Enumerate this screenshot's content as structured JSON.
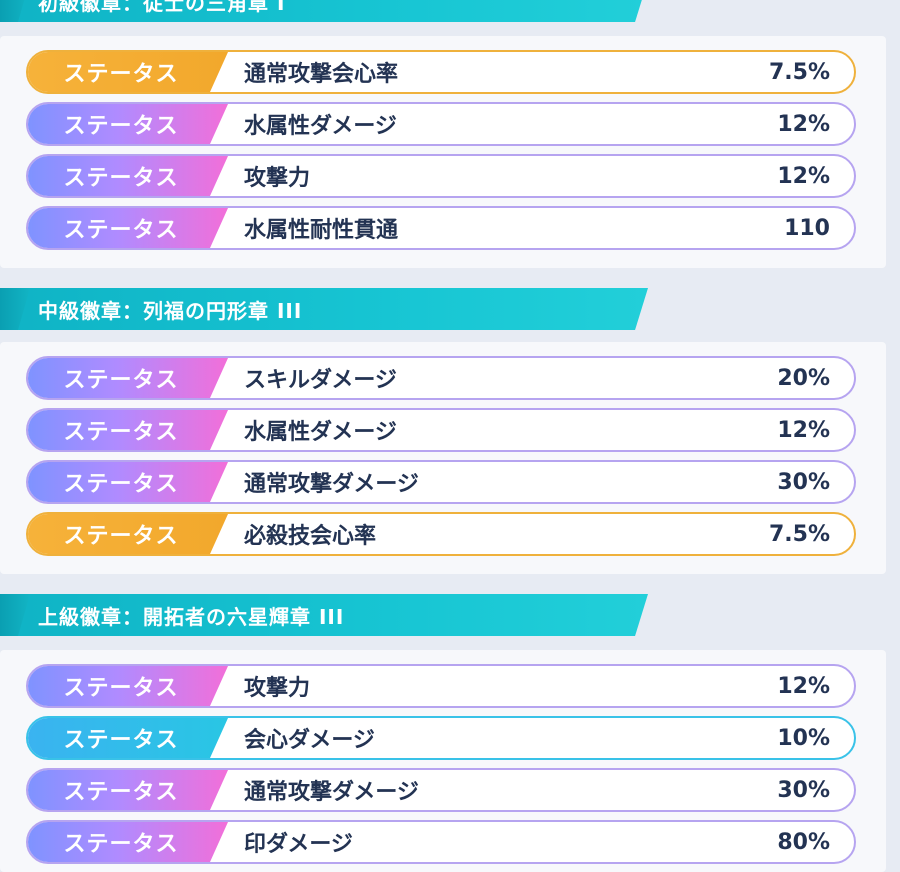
{
  "sections": [
    {
      "title": "初級徽章：従士の三角章 I",
      "rows": [
        {
          "tag": "ステータス",
          "name": "通常攻撃会心率",
          "value": "7.5%",
          "color": "gold"
        },
        {
          "tag": "ステータス",
          "name": "水属性ダメージ",
          "value": "12%",
          "color": "purple"
        },
        {
          "tag": "ステータス",
          "name": "攻撃力",
          "value": "12%",
          "color": "purple"
        },
        {
          "tag": "ステータス",
          "name": "水属性耐性貫通",
          "value": "110",
          "color": "purple"
        }
      ]
    },
    {
      "title": "中級徽章：列福の円形章 III",
      "rows": [
        {
          "tag": "ステータス",
          "name": "スキルダメージ",
          "value": "20%",
          "color": "purple"
        },
        {
          "tag": "ステータス",
          "name": "水属性ダメージ",
          "value": "12%",
          "color": "purple"
        },
        {
          "tag": "ステータス",
          "name": "通常攻撃ダメージ",
          "value": "30%",
          "color": "purple"
        },
        {
          "tag": "ステータス",
          "name": "必殺技会心率",
          "value": "7.5%",
          "color": "gold"
        }
      ]
    },
    {
      "title": "上級徽章：開拓者の六星輝章 III",
      "rows": [
        {
          "tag": "ステータス",
          "name": "攻撃力",
          "value": "12%",
          "color": "purple"
        },
        {
          "tag": "ステータス",
          "name": "会心ダメージ",
          "value": "10%",
          "color": "cyan"
        },
        {
          "tag": "ステータス",
          "name": "通常攻撃ダメージ",
          "value": "30%",
          "color": "purple"
        },
        {
          "tag": "ステータス",
          "name": "印ダメージ",
          "value": "80%",
          "color": "purple"
        }
      ]
    }
  ]
}
